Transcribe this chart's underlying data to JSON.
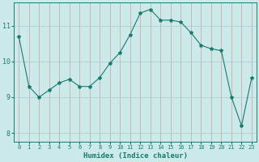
{
  "x_values": [
    0,
    1,
    2,
    3,
    4,
    5,
    6,
    7,
    8,
    9,
    10,
    11,
    12,
    13,
    14,
    15,
    16,
    17,
    18,
    19,
    20,
    21,
    22,
    23
  ],
  "y_values": [
    10.7,
    9.3,
    9.0,
    9.2,
    9.4,
    9.5,
    9.3,
    9.3,
    9.55,
    9.95,
    10.25,
    10.75,
    11.35,
    11.45,
    11.15,
    11.15,
    11.1,
    10.8,
    10.45,
    10.35,
    10.3,
    9.0,
    8.2,
    9.55
  ],
  "xlabel": "Humidex (Indice chaleur)",
  "ylim": [
    7.75,
    11.65
  ],
  "xlim": [
    -0.5,
    23.5
  ],
  "yticks": [
    8,
    9,
    10,
    11
  ],
  "xticks": [
    0,
    1,
    2,
    3,
    4,
    5,
    6,
    7,
    8,
    9,
    10,
    11,
    12,
    13,
    14,
    15,
    16,
    17,
    18,
    19,
    20,
    21,
    22,
    23
  ],
  "line_color": "#1a7a6e",
  "marker": "*",
  "marker_size": 3,
  "bg_color": "#cceaea",
  "grid_color_v": "#c8a0a0",
  "grid_color_h": "#aacccc"
}
